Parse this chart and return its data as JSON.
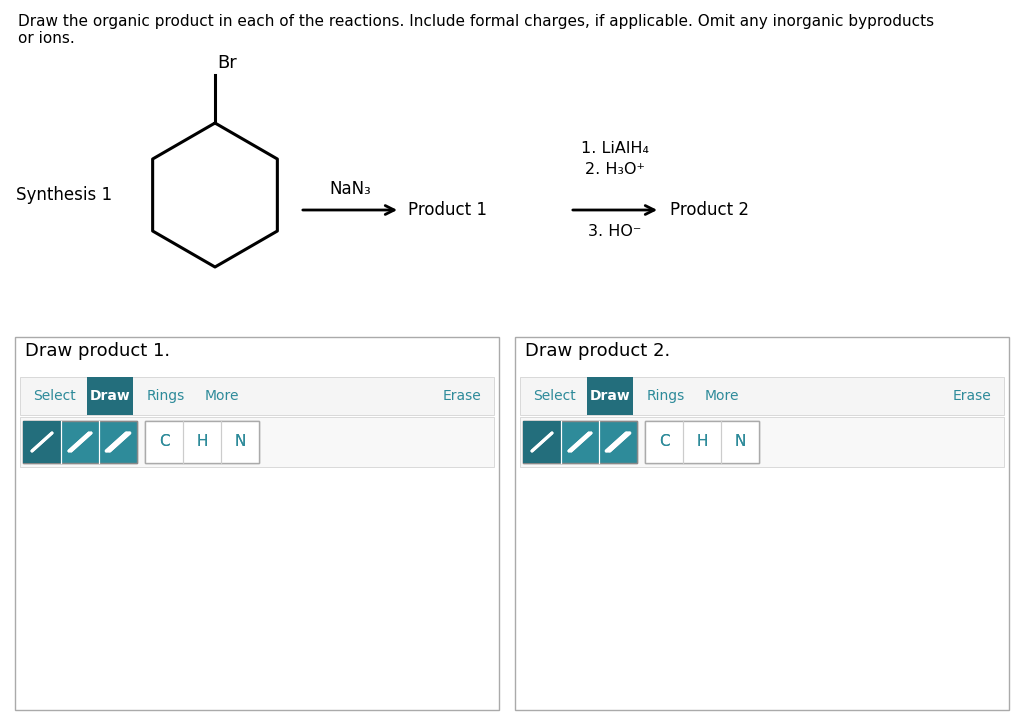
{
  "title_text1": "Draw the organic product in each of the reactions. Include formal charges, if applicable. Omit any inorganic byproducts",
  "title_text2": "or ions.",
  "synthesis_label": "Synthesis 1",
  "reagent1": "NaN₃",
  "reagent2_line1": "1. LiAlH₄",
  "reagent2_line2": "2. H₃O⁺",
  "reagent2_line3": "3. HO⁻",
  "product1_label": "Product 1",
  "product2_label": "Product 2",
  "draw_box1_label": "Draw product 1.",
  "draw_box2_label": "Draw product 2.",
  "teal_color": "#2E8B9A",
  "teal_dark": "#236e7c",
  "bg_color": "#ffffff",
  "atom_labels": [
    "C",
    "H",
    "N"
  ]
}
